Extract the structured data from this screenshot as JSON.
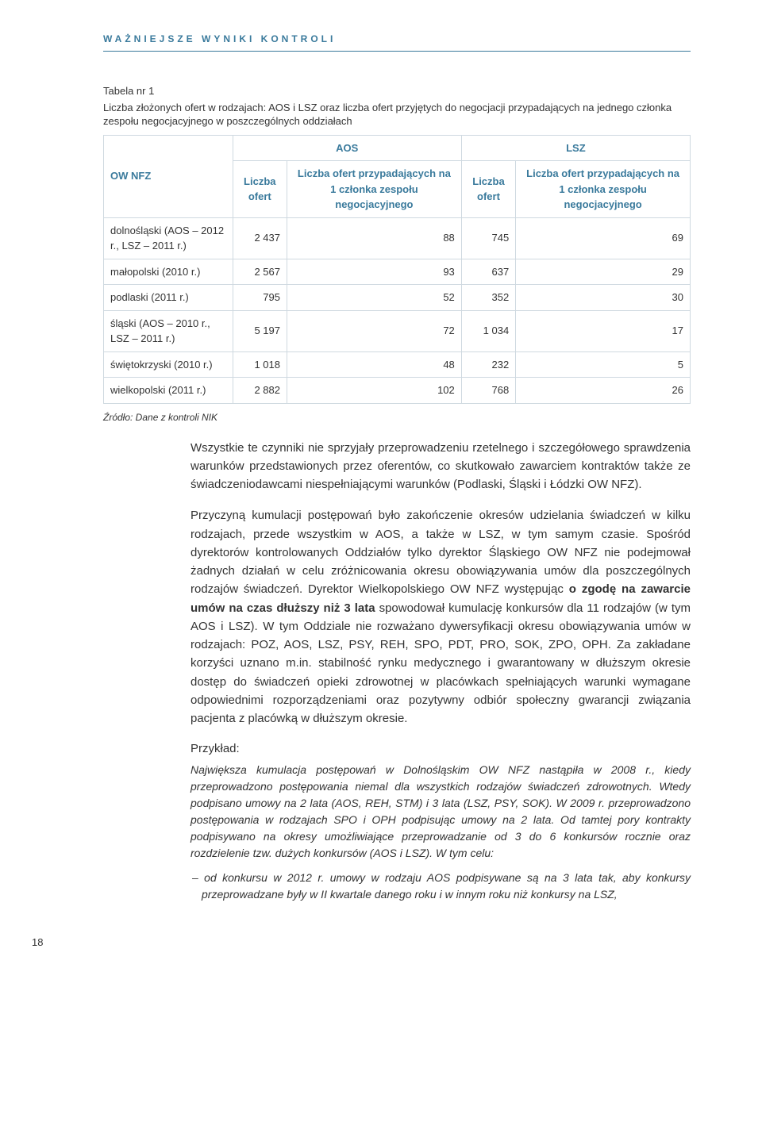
{
  "header": "WAŻNIEJSZE WYNIKI KONTROLI",
  "table": {
    "number": "Tabela nr 1",
    "caption": "Liczba złożonych ofert w rodzajach: AOS i LSZ oraz liczba ofert przyjętych do negocjacji przypadających na jednego członka zespołu negocjacyjnego w poszczególnych oddziałach",
    "row_header": "OW NFZ",
    "group_aos": "AOS",
    "group_lsz": "LSZ",
    "col_liczba": "Liczba ofert",
    "col_przyp": "Liczba ofert przypadających na 1 członka zespołu negocjacyjnego",
    "rows": [
      {
        "label": "dolnośląski (AOS – 2012 r., LSZ – 2011 r.)",
        "a": "2 437",
        "b": "88",
        "c": "745",
        "d": "69"
      },
      {
        "label": "małopolski (2010 r.)",
        "a": "2 567",
        "b": "93",
        "c": "637",
        "d": "29"
      },
      {
        "label": "podlaski (2011 r.)",
        "a": "795",
        "b": "52",
        "c": "352",
        "d": "30"
      },
      {
        "label": "śląski (AOS – 2010 r., LSZ – 2011 r.)",
        "a": "5 197",
        "b": "72",
        "c": "1 034",
        "d": "17"
      },
      {
        "label": "świętokrzyski (2010 r.)",
        "a": "1 018",
        "b": "48",
        "c": "232",
        "d": "5"
      },
      {
        "label": "wielkopolski (2011 r.)",
        "a": "2 882",
        "b": "102",
        "c": "768",
        "d": "26"
      }
    ],
    "source": "Źródło: Dane z kontroli NIK"
  },
  "body": {
    "p1": "Wszystkie te czynniki nie sprzyjały przeprowadzeniu rzetelnego i szczegółowego sprawdzenia warunków przedstawionych przez oferentów, co skutkowało zawarciem kontraktów także ze świadczeniodawcami niespełniającymi warunków (Podlaski, Śląski i Łódzki OW NFZ).",
    "p2_a": "Przyczyną kumulacji postępowań było zakończenie okresów udzielania świadczeń w kilku rodzajach, przede wszystkim w AOS, a także w LSZ, w tym samym czasie. Spośród dyrektorów kontrolowanych Oddziałów tylko dyrektor Śląskiego OW NFZ nie podejmował żadnych działań w celu zróżnicowania okresu obowiązywania umów dla poszczególnych rodzajów świadczeń. Dyrektor Wielkopolskiego OW NFZ występując ",
    "p2_b1": "o zgodę na zawarcie umów na czas dłuższy niż 3 lata",
    "p2_c": " spowodował kumulację konkursów dla 11 rodzajów (w tym AOS i LSZ). W tym Oddziale nie rozważano dywersyfikacji okresu obowiązywania umów w rodzajach: POZ, AOS, LSZ, PSY, REH, SPO, PDT, PRO, SOK, ZPO, OPH. Za zakładane korzyści uznano m.in. stabilność rynku medycznego i gwarantowany w dłuższym okresie dostęp do świadczeń opieki zdrowotnej w placówkach spełniających warunki wymagane odpowiednimi rozporządzeniami oraz pozytywny odbiór społeczny gwarancji związania pacjenta z placówką w dłuższym okresie.",
    "example_label": "Przykład:",
    "example_body": "Największa kumulacja postępowań w Dolnośląskim OW NFZ nastąpiła w 2008 r., kiedy przeprowadzono postępowania niemal dla wszystkich rodzajów świadczeń zdrowotnych. Wtedy podpisano umowy na 2 lata (AOS, REH, STM) i 3 lata (LSZ, PSY, SOK). W 2009 r. przeprowadzono postępowania w rodzajach SPO i OPH podpisując umowy na 2 lata. Od tamtej pory kontrakty podpisywano na okresy umożliwiające przeprowadzanie od 3 do 6 konkursów rocznie oraz rozdzielenie tzw. dużych konkursów (AOS i LSZ). W tym celu:",
    "bullet1": "– od konkursu w 2012 r. umowy w rodzaju AOS podpisywane są na 3 lata tak, aby konkursy przeprowadzane były w II kwartale danego roku i w innym roku niż konkursy na LSZ,"
  },
  "page_number": "18"
}
